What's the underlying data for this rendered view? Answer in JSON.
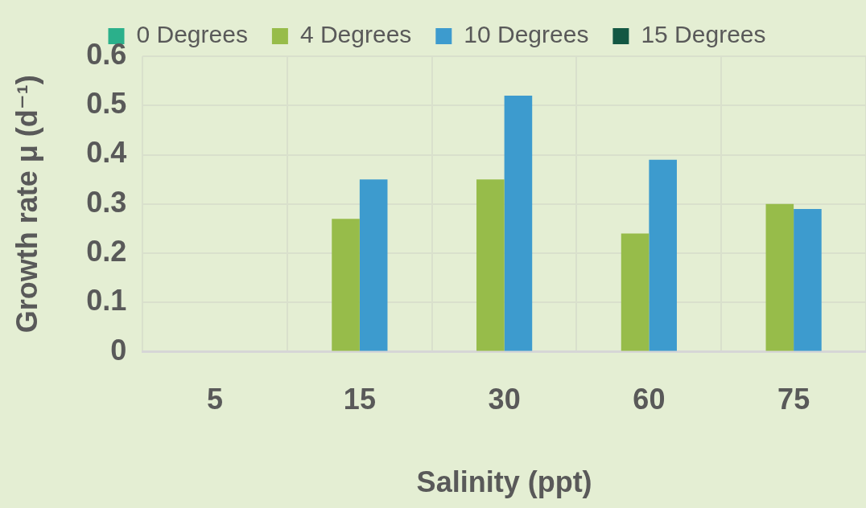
{
  "chart_data": {
    "type": "bar",
    "xlabel": "Salinity (ppt)",
    "ylabel": "Growth rate μ (d⁻¹)",
    "categories": [
      "5",
      "15",
      "30",
      "60",
      "75"
    ],
    "series": [
      {
        "name": "0 Degrees",
        "color": "#2bb08b",
        "values": [
          null,
          null,
          null,
          null,
          null
        ]
      },
      {
        "name": "4 Degrees",
        "color": "#97bc4a",
        "values": [
          null,
          0.27,
          0.35,
          0.24,
          0.3
        ]
      },
      {
        "name": "10 Degrees",
        "color": "#3d9bce",
        "values": [
          null,
          0.35,
          0.52,
          0.39,
          0.29
        ]
      },
      {
        "name": "15 Degrees",
        "color": "#135743",
        "values": [
          null,
          null,
          null,
          null,
          null
        ]
      }
    ],
    "ylim": [
      0,
      0.6
    ],
    "yticks": [
      0,
      0.1,
      0.2,
      0.3,
      0.4,
      0.5,
      0.6
    ],
    "grid": true,
    "legend": "top"
  }
}
